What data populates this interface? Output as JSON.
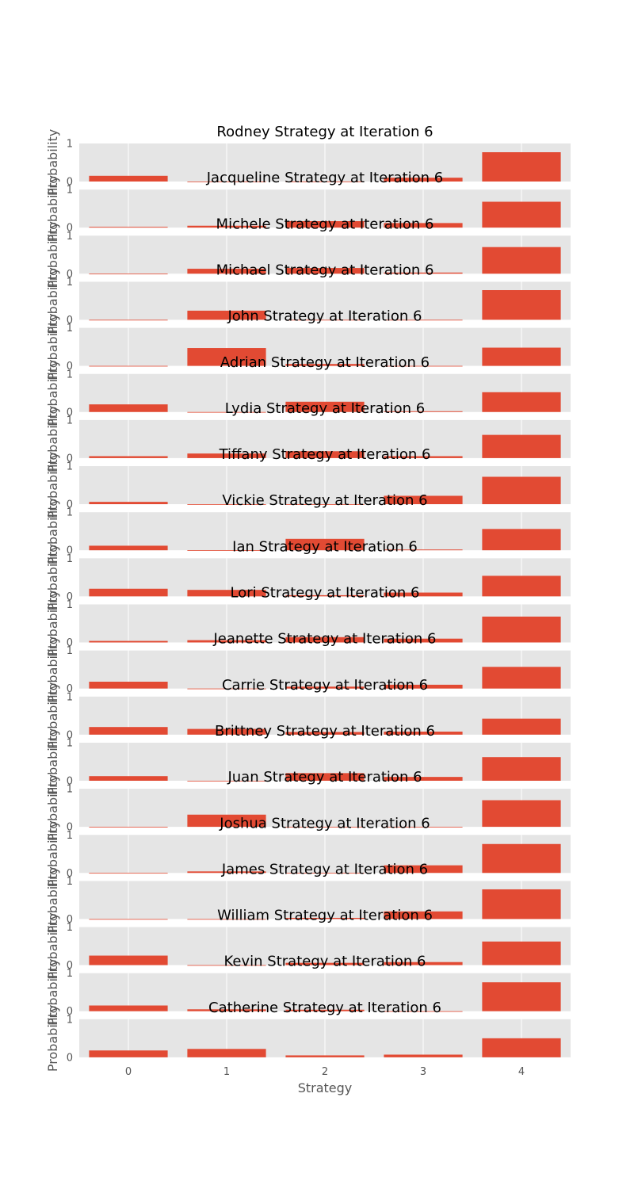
{
  "chart_data": {
    "type": "bar",
    "categories": [
      "0",
      "1",
      "2",
      "3",
      "4"
    ],
    "xlabel": "Strategy",
    "ylabel": "Probability",
    "ylim": [
      0,
      1
    ],
    "yticks": [
      "0",
      "1"
    ],
    "grid": true,
    "colors": {
      "bar": "#E24A33",
      "panel": "#E5E5E5",
      "grid": "#FFFFFF"
    },
    "panels": [
      {
        "title": "Rodney Strategy at Iteration 6",
        "values": [
          0.15,
          0.0,
          0.0,
          0.1,
          0.77
        ]
      },
      {
        "title": "Jacqueline Strategy at Iteration 6",
        "values": [
          0.02,
          0.05,
          0.17,
          0.12,
          0.68
        ]
      },
      {
        "title": "Michele Strategy at Iteration 6",
        "values": [
          0.0,
          0.13,
          0.15,
          0.03,
          0.7
        ]
      },
      {
        "title": "Michael Strategy at Iteration 6",
        "values": [
          0.0,
          0.24,
          0.0,
          0.0,
          0.78
        ]
      },
      {
        "title": "John Strategy at Iteration 6",
        "values": [
          0.0,
          0.47,
          0.05,
          0.0,
          0.48
        ]
      },
      {
        "title": "Adrian Strategy at Iteration 6",
        "values": [
          0.2,
          0.0,
          0.27,
          0.02,
          0.52
        ]
      },
      {
        "title": "Lydia Strategy at Iteration 6",
        "values": [
          0.05,
          0.12,
          0.18,
          0.05,
          0.61
        ]
      },
      {
        "title": "Tiffany Strategy at Iteration 6",
        "values": [
          0.06,
          0.0,
          0.0,
          0.22,
          0.72
        ]
      },
      {
        "title": "Vickie Strategy at Iteration 6",
        "values": [
          0.12,
          0.0,
          0.3,
          0.02,
          0.56
        ]
      },
      {
        "title": "Ian Strategy at Iteration 6",
        "values": [
          0.2,
          0.17,
          0.03,
          0.1,
          0.54
        ]
      },
      {
        "title": "Lori Strategy at Iteration 6",
        "values": [
          0.04,
          0.06,
          0.14,
          0.1,
          0.68
        ]
      },
      {
        "title": "Jeanette Strategy at Iteration 6",
        "values": [
          0.18,
          0.0,
          0.05,
          0.1,
          0.57
        ]
      },
      {
        "title": "Carrie Strategy at Iteration 6",
        "values": [
          0.2,
          0.15,
          0.07,
          0.08,
          0.42
        ]
      },
      {
        "title": "Brittney Strategy at Iteration 6",
        "values": [
          0.12,
          0.0,
          0.2,
          0.1,
          0.62
        ]
      },
      {
        "title": "Juan Strategy at Iteration 6",
        "values": [
          0.0,
          0.32,
          0.0,
          0.0,
          0.7
        ]
      },
      {
        "title": "Joshua Strategy at Iteration 6",
        "values": [
          0.0,
          0.04,
          0.0,
          0.2,
          0.76
        ]
      },
      {
        "title": "James Strategy at Iteration 6",
        "values": [
          0.0,
          0.0,
          0.03,
          0.2,
          0.78
        ]
      },
      {
        "title": "William Strategy at Iteration 6",
        "values": [
          0.25,
          0.0,
          0.06,
          0.08,
          0.62
        ]
      },
      {
        "title": "Kevin Strategy at Iteration 6",
        "values": [
          0.15,
          0.05,
          0.04,
          0.0,
          0.76
        ]
      },
      {
        "title": "Catherine Strategy at Iteration 6",
        "values": [
          0.18,
          0.22,
          0.05,
          0.07,
          0.5
        ]
      }
    ]
  }
}
